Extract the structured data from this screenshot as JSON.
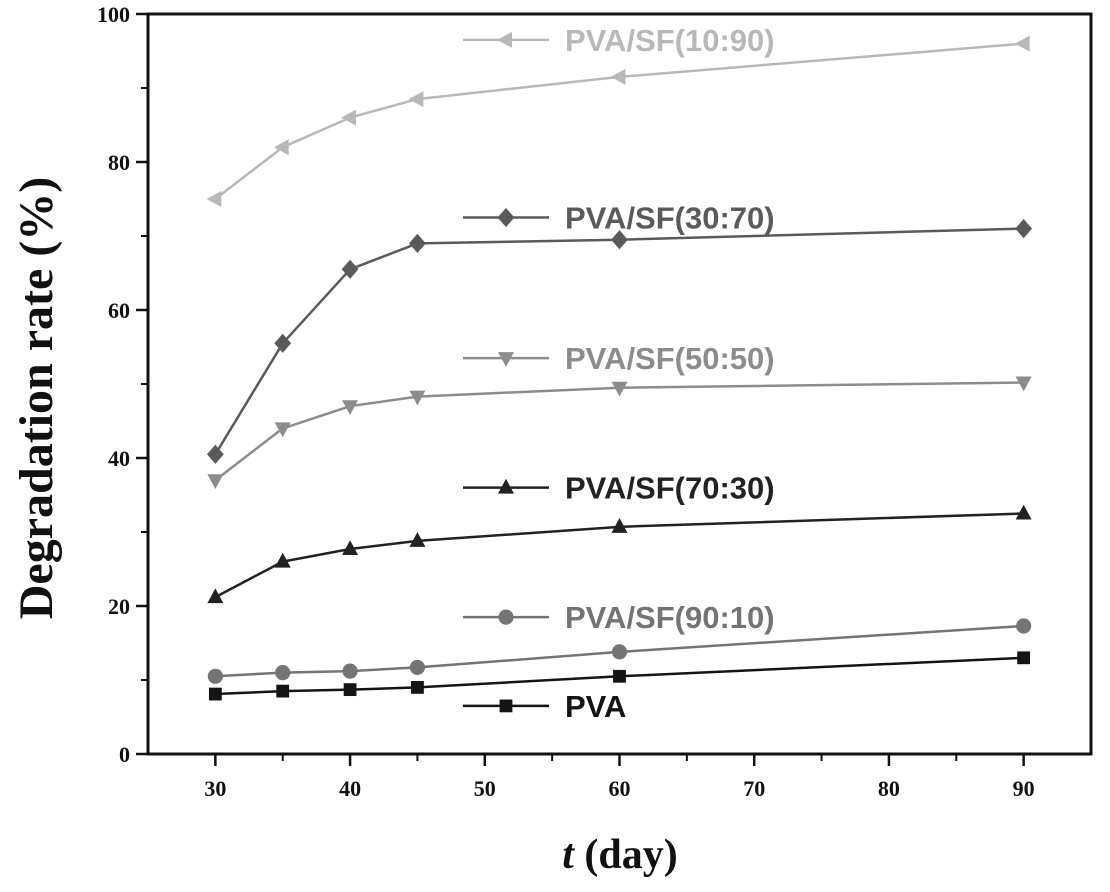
{
  "chart_data": {
    "type": "line",
    "title": "",
    "xlabel_italic": "t",
    "xlabel_rest": " (day)",
    "ylabel": "Degradation rate (%)",
    "xlim": [
      25,
      95
    ],
    "ylim": [
      0,
      100
    ],
    "x_ticks": [
      30,
      40,
      50,
      60,
      70,
      80,
      90
    ],
    "y_ticks": [
      0,
      20,
      40,
      60,
      80,
      100
    ],
    "x": [
      30,
      35,
      40,
      45,
      60,
      90
    ],
    "grid": false,
    "legend_placement": "inline-per-series",
    "series": [
      {
        "name": "PVA/SF(10:90)",
        "marker": "triangle-left",
        "color": "#b8b8b8",
        "values": [
          75,
          82,
          86,
          88.5,
          91.5,
          96
        ],
        "legend_y": 96.5
      },
      {
        "name": "PVA/SF(30:70)",
        "marker": "diamond",
        "color": "#5a5a5a",
        "values": [
          40.5,
          55.5,
          65.5,
          69,
          69.5,
          71
        ],
        "legend_y": 72.5
      },
      {
        "name": "PVA/SF(50:50)",
        "marker": "triangle-down",
        "color": "#8c8c8c",
        "values": [
          37,
          44,
          47,
          48.3,
          49.5,
          50.2
        ],
        "legend_y": 53.5
      },
      {
        "name": "PVA/SF(70:30)",
        "marker": "triangle-up",
        "color": "#222222",
        "values": [
          21.2,
          26,
          27.7,
          28.8,
          30.7,
          32.5
        ],
        "legend_y": 36
      },
      {
        "name": "PVA/SF(90:10)",
        "marker": "circle",
        "color": "#747474",
        "values": [
          10.5,
          11,
          11.2,
          11.7,
          13.8,
          17.3
        ],
        "legend_y": 18.5
      },
      {
        "name": "PVA",
        "marker": "square",
        "color": "#141414",
        "values": [
          8.1,
          8.5,
          8.7,
          9,
          10.5,
          13
        ],
        "legend_y": 6.5
      }
    ]
  }
}
